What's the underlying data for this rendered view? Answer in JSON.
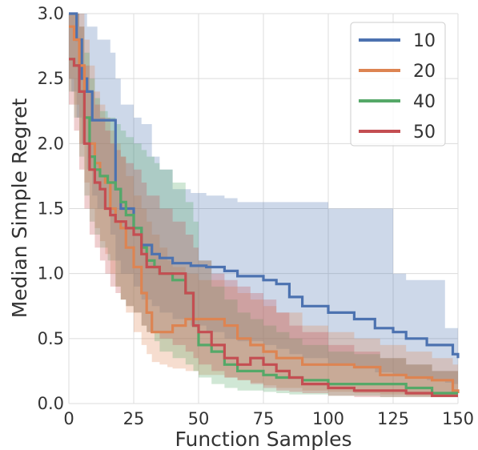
{
  "chart_data": {
    "type": "line",
    "xlabel": "Function Samples",
    "ylabel": "Median Simple Regret",
    "xlim": [
      0,
      150
    ],
    "ylim": [
      0,
      3.0
    ],
    "xticks": [
      "0",
      "25",
      "50",
      "75",
      "100",
      "125",
      "150"
    ],
    "yticks": [
      "0.0",
      "0.5",
      "1.0",
      "1.5",
      "2.0",
      "2.5",
      "3.0"
    ],
    "grid": true,
    "legend_position": "top-right",
    "series": [
      {
        "name": "10",
        "color": "#4c72b0",
        "x": [
          0,
          1,
          3,
          5,
          7,
          9,
          11,
          16,
          18,
          20,
          25,
          28,
          32,
          35,
          40,
          47,
          53,
          60,
          65,
          75,
          80,
          85,
          90,
          100,
          110,
          118,
          125,
          130,
          138,
          145,
          148,
          150
        ],
        "median": [
          3.0,
          3.0,
          2.8,
          2.5,
          2.4,
          2.18,
          2.18,
          2.18,
          1.65,
          1.5,
          1.35,
          1.22,
          1.15,
          1.12,
          1.08,
          1.06,
          1.05,
          1.02,
          0.98,
          0.95,
          0.92,
          0.82,
          0.75,
          0.7,
          0.65,
          0.58,
          0.55,
          0.5,
          0.45,
          0.45,
          0.38,
          0.35
        ],
        "lower": [
          2.5,
          2.4,
          2.2,
          2.0,
          1.8,
          1.6,
          1.5,
          1.3,
          1.1,
          1.0,
          0.9,
          0.8,
          0.75,
          0.7,
          0.65,
          0.6,
          0.55,
          0.5,
          0.48,
          0.45,
          0.42,
          0.38,
          0.35,
          0.3,
          0.27,
          0.24,
          0.22,
          0.2,
          0.18,
          0.16,
          0.15,
          0.15
        ],
        "upper": [
          3.0,
          3.0,
          3.0,
          3.0,
          2.9,
          2.9,
          2.8,
          2.7,
          2.5,
          2.3,
          2.2,
          2.15,
          1.9,
          1.8,
          1.65,
          1.62,
          1.6,
          1.58,
          1.55,
          1.55,
          1.55,
          1.55,
          1.55,
          1.5,
          1.5,
          1.5,
          1.0,
          0.95,
          0.95,
          0.58,
          0.58,
          0.58
        ]
      },
      {
        "name": "20",
        "color": "#dd8452",
        "x": [
          0,
          2,
          4,
          6,
          8,
          10,
          12,
          14,
          16,
          18,
          20,
          22,
          25,
          28,
          30,
          32,
          35,
          38,
          40,
          45,
          50,
          60,
          65,
          70,
          75,
          80,
          90,
          100,
          110,
          120,
          130,
          140,
          148,
          150
        ],
        "median": [
          2.9,
          2.8,
          2.6,
          2.2,
          2.0,
          1.85,
          1.75,
          1.7,
          1.5,
          1.4,
          1.35,
          1.2,
          1.05,
          0.85,
          0.7,
          0.55,
          0.55,
          0.55,
          0.6,
          0.65,
          0.65,
          0.6,
          0.5,
          0.45,
          0.4,
          0.35,
          0.3,
          0.3,
          0.28,
          0.22,
          0.2,
          0.18,
          0.1,
          0.08
        ],
        "lower": [
          2.5,
          2.3,
          2.0,
          1.7,
          1.5,
          1.35,
          1.25,
          1.15,
          1.0,
          0.9,
          0.8,
          0.7,
          0.55,
          0.45,
          0.38,
          0.32,
          0.3,
          0.28,
          0.27,
          0.25,
          0.22,
          0.2,
          0.18,
          0.16,
          0.14,
          0.12,
          0.1,
          0.09,
          0.08,
          0.07,
          0.06,
          0.05,
          0.05,
          0.05
        ],
        "upper": [
          3.0,
          3.0,
          3.0,
          2.8,
          2.6,
          2.4,
          2.3,
          2.2,
          2.1,
          2.0,
          1.9,
          1.75,
          1.6,
          1.5,
          1.4,
          1.3,
          1.2,
          1.1,
          1.05,
          1.0,
          0.95,
          0.9,
          0.85,
          0.8,
          0.75,
          0.7,
          0.6,
          0.55,
          0.5,
          0.45,
          0.4,
          0.35,
          0.3,
          0.3
        ]
      },
      {
        "name": "40",
        "color": "#55a868",
        "x": [
          0,
          2,
          4,
          6,
          8,
          10,
          12,
          15,
          18,
          20,
          22,
          25,
          28,
          30,
          33,
          35,
          40,
          45,
          48,
          50,
          55,
          60,
          65,
          70,
          75,
          80,
          85,
          90,
          100,
          110,
          120,
          130,
          140,
          150
        ],
        "median": [
          2.65,
          2.6,
          2.4,
          2.2,
          1.9,
          1.8,
          1.75,
          1.7,
          1.65,
          1.55,
          1.45,
          1.35,
          1.2,
          1.1,
          1.05,
          1.0,
          0.95,
          0.85,
          0.6,
          0.45,
          0.4,
          0.3,
          0.25,
          0.25,
          0.22,
          0.2,
          0.2,
          0.18,
          0.15,
          0.15,
          0.15,
          0.12,
          0.08,
          0.08
        ],
        "lower": [
          2.4,
          2.2,
          1.9,
          1.6,
          1.4,
          1.3,
          1.2,
          1.1,
          0.9,
          0.8,
          0.75,
          0.7,
          0.6,
          0.55,
          0.48,
          0.4,
          0.35,
          0.3,
          0.25,
          0.2,
          0.15,
          0.12,
          0.1,
          0.1,
          0.09,
          0.08,
          0.07,
          0.07,
          0.06,
          0.06,
          0.05,
          0.05,
          0.05,
          0.05
        ],
        "upper": [
          3.0,
          3.0,
          2.9,
          2.7,
          2.5,
          2.35,
          2.25,
          2.2,
          2.15,
          2.1,
          2.05,
          2.0,
          1.95,
          1.9,
          1.85,
          1.8,
          1.7,
          1.55,
          1.4,
          1.1,
          0.9,
          0.8,
          0.7,
          0.65,
          0.6,
          0.55,
          0.5,
          0.45,
          0.4,
          0.38,
          0.35,
          0.3,
          0.25,
          0.22
        ]
      },
      {
        "name": "50",
        "color": "#c44e52",
        "x": [
          0,
          2,
          4,
          6,
          8,
          10,
          12,
          14,
          16,
          18,
          20,
          22,
          25,
          28,
          30,
          35,
          40,
          45,
          48,
          50,
          55,
          60,
          65,
          70,
          75,
          80,
          85,
          90,
          100,
          110,
          120,
          130,
          140,
          150
        ],
        "median": [
          2.65,
          2.6,
          2.4,
          2.0,
          1.8,
          1.7,
          1.65,
          1.5,
          1.45,
          1.4,
          1.4,
          1.35,
          1.3,
          1.15,
          1.05,
          1.0,
          1.0,
          0.85,
          0.6,
          0.55,
          0.45,
          0.35,
          0.3,
          0.35,
          0.3,
          0.25,
          0.2,
          0.15,
          0.12,
          0.1,
          0.1,
          0.08,
          0.06,
          0.06
        ],
        "lower": [
          2.3,
          2.1,
          1.8,
          1.5,
          1.3,
          1.2,
          1.1,
          1.0,
          0.9,
          0.85,
          0.8,
          0.75,
          0.7,
          0.6,
          0.55,
          0.5,
          0.45,
          0.4,
          0.35,
          0.3,
          0.25,
          0.2,
          0.18,
          0.15,
          0.12,
          0.1,
          0.09,
          0.08,
          0.06,
          0.05,
          0.05,
          0.05,
          0.05,
          0.05
        ],
        "upper": [
          3.0,
          3.0,
          2.9,
          2.6,
          2.4,
          2.3,
          2.2,
          2.1,
          2.0,
          1.95,
          1.9,
          1.85,
          1.8,
          1.7,
          1.6,
          1.5,
          1.4,
          1.3,
          1.2,
          1.1,
          1.0,
          0.95,
          0.9,
          0.85,
          0.8,
          0.7,
          0.6,
          0.55,
          0.45,
          0.4,
          0.35,
          0.3,
          0.25,
          0.25
        ]
      }
    ]
  }
}
